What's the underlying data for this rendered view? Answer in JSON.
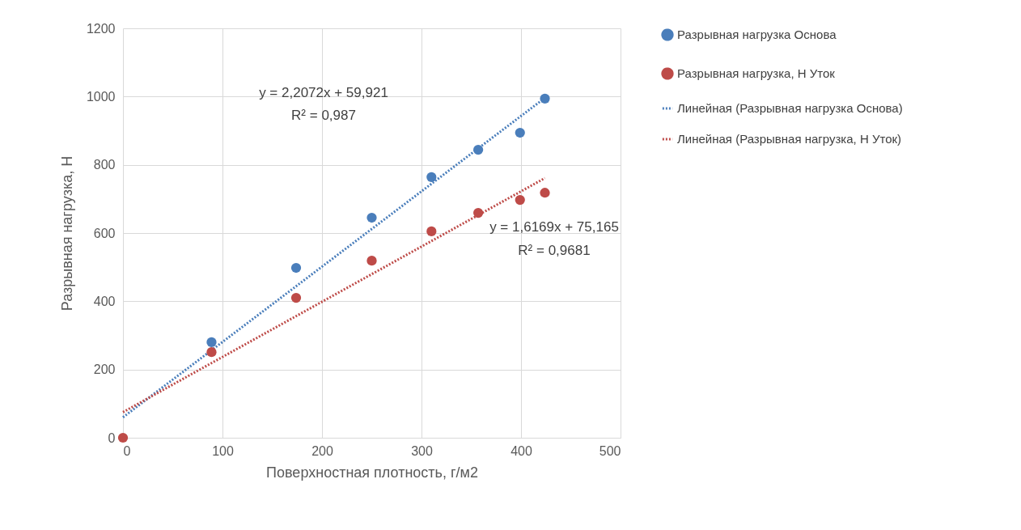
{
  "chart_data": {
    "type": "scatter",
    "xlabel": "Поверхностная плотность, г/м2",
    "ylabel": "Разрывная нагрузка, Н",
    "series": [
      {
        "name": "Разрывная нагрузка Основа",
        "color": "#4a7ebb",
        "x": [
          89,
          174,
          250,
          310,
          357,
          399,
          424
        ],
        "values": [
          280,
          498,
          645,
          764,
          844,
          894,
          994
        ]
      },
      {
        "name": "Разрывная нагрузка, Н Уток",
        "color": "#be4b48",
        "x": [
          0,
          89,
          174,
          250,
          310,
          357,
          399,
          424
        ],
        "values": [
          0,
          251,
          410,
          519,
          605,
          659,
          697,
          718
        ]
      },
      {
        "name": "Линейная (Разрывная нагрузка Основа)",
        "type": "line",
        "line_style": "dotted",
        "color": "#4a7ebb",
        "x": [
          0,
          424
        ],
        "values": [
          60,
          996
        ]
      },
      {
        "name": "Линейная (Разрывная нагрузка, Н Уток)",
        "type": "line",
        "line_style": "dotted",
        "color": "#be4b48",
        "x": [
          0,
          424
        ],
        "values": [
          75,
          761
        ]
      }
    ],
    "annotations": [
      "y = 2,2072x + 59,921",
      "R² = 0,987",
      "y = 1,6169x + 75,165",
      "R² = 0,9681"
    ],
    "xlim": [
      0,
      500
    ],
    "xticks": [
      0,
      100,
      200,
      300,
      400,
      500
    ],
    "ylim": [
      0,
      1200
    ],
    "yticks": [
      0,
      200,
      400,
      600,
      800,
      1000,
      1200
    ],
    "grid": true,
    "legend": "right"
  }
}
